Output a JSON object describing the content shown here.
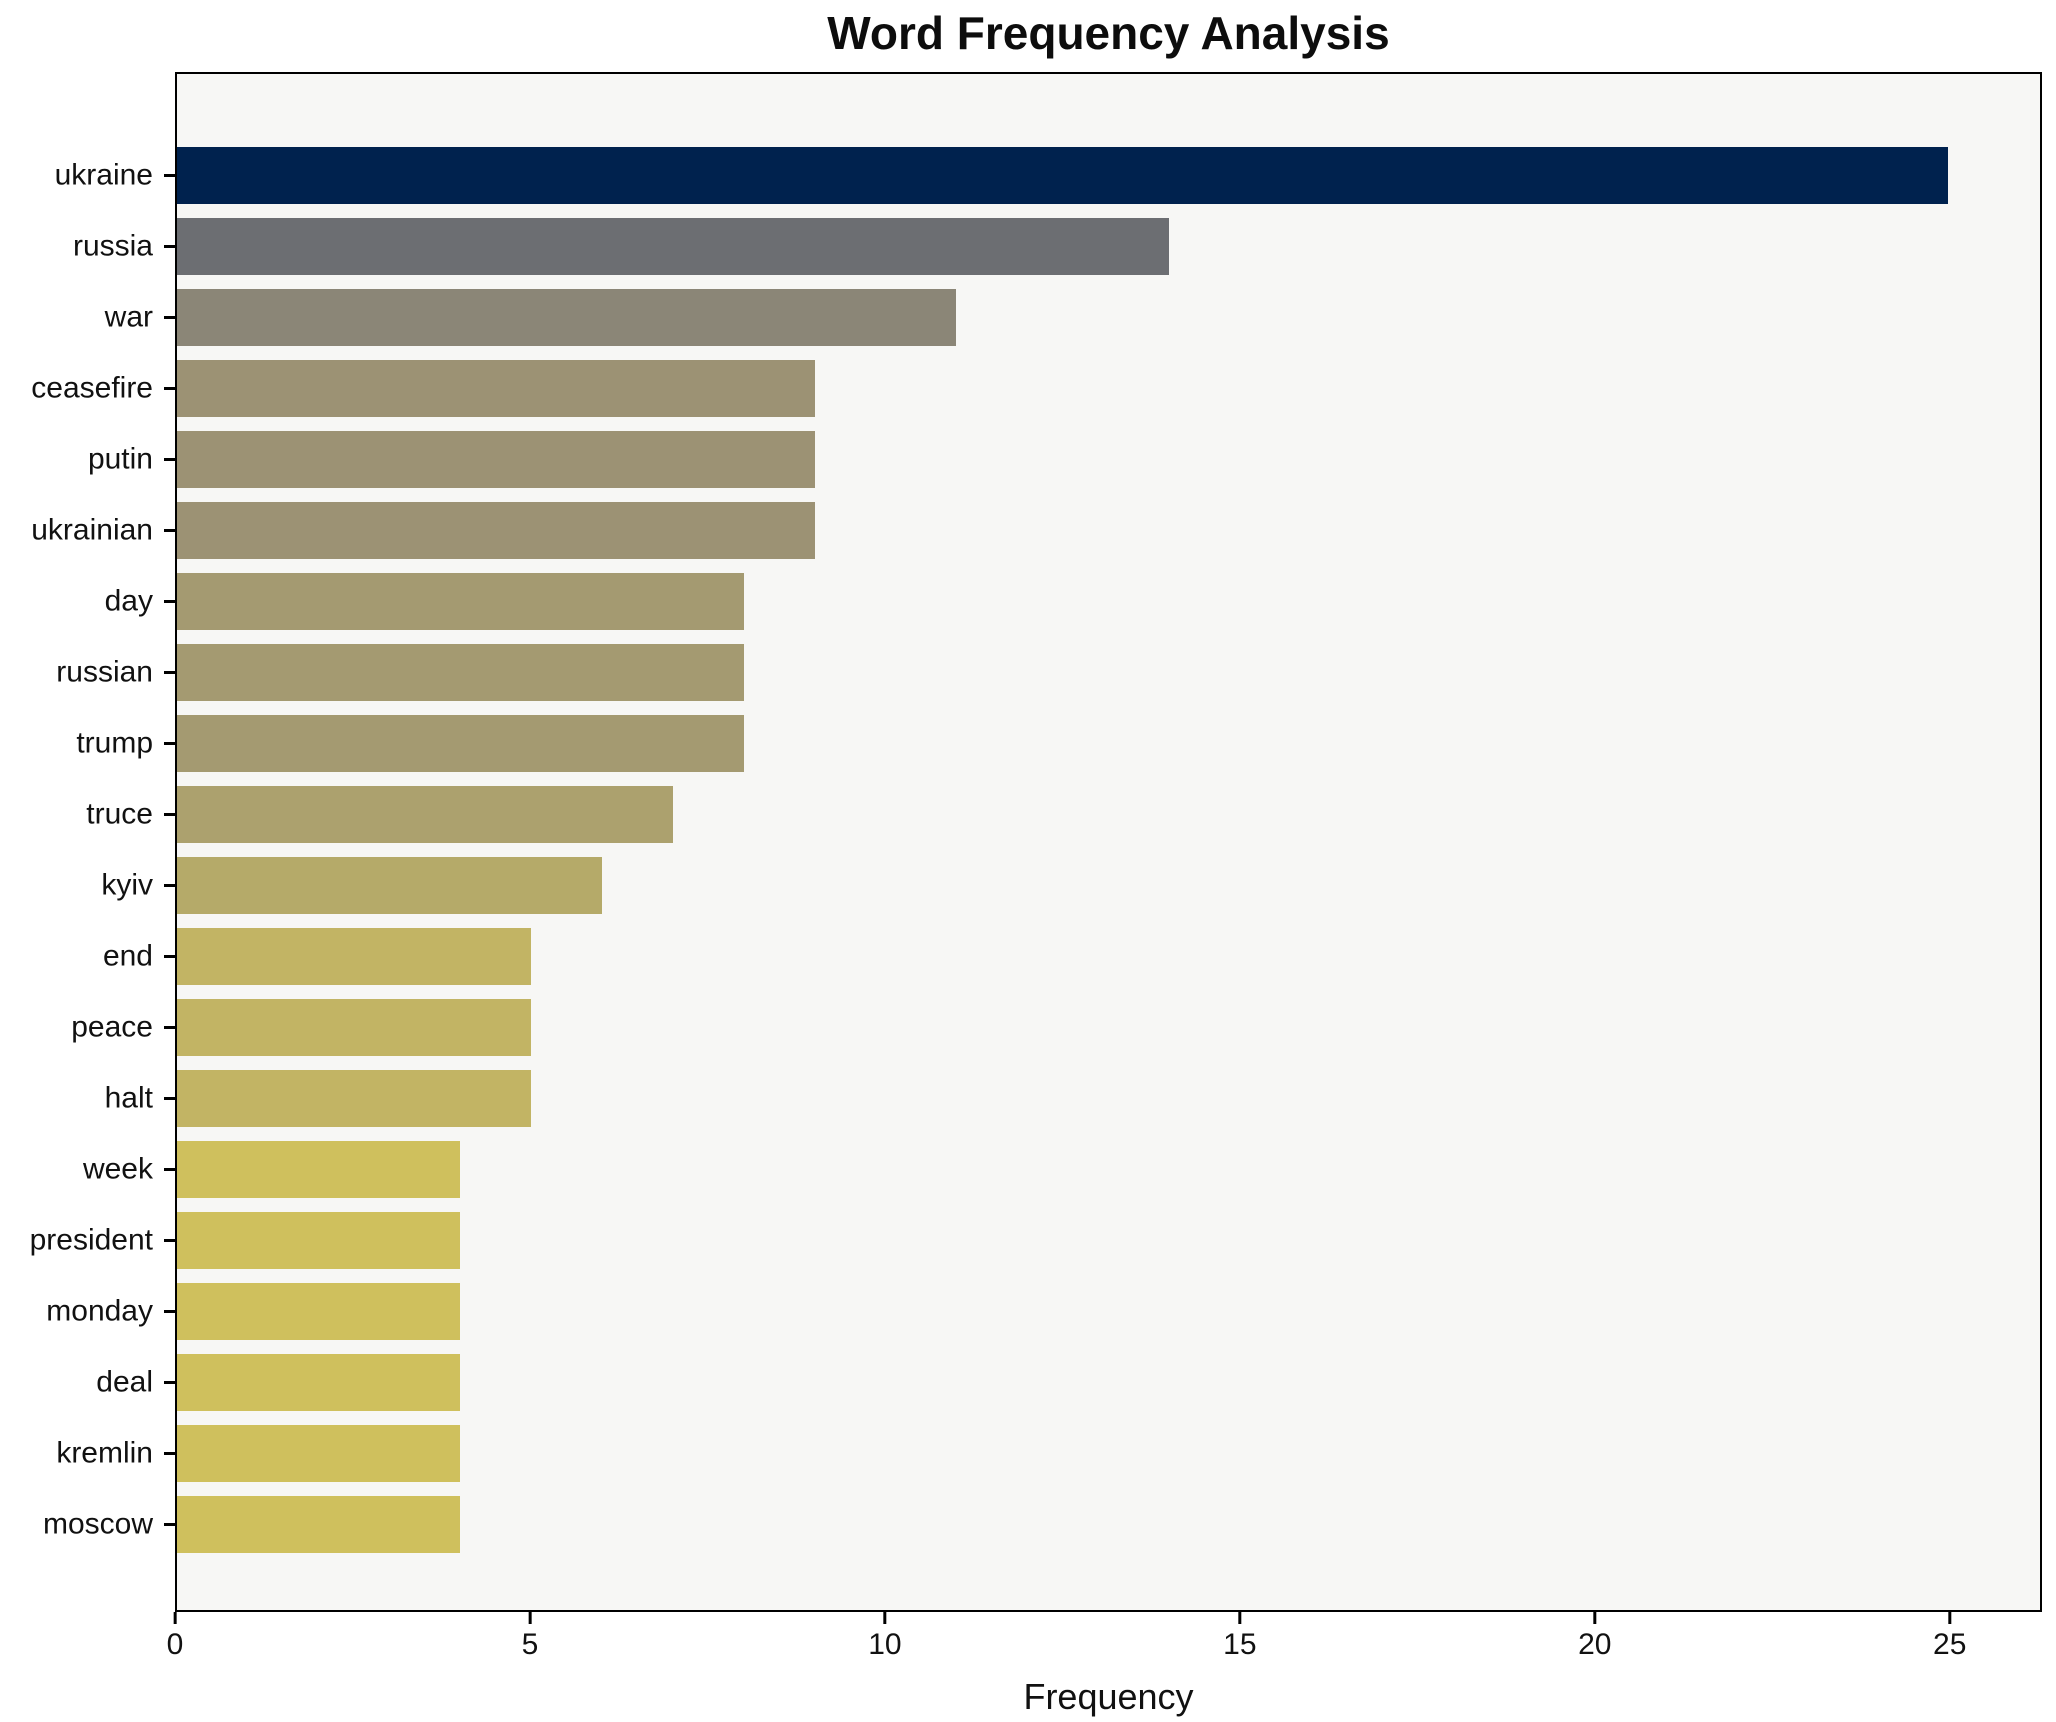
{
  "chart_data": {
    "type": "bar",
    "orientation": "horizontal",
    "title": "Word Frequency Analysis",
    "xlabel": "Frequency",
    "ylabel": "",
    "categories": [
      "ukraine",
      "russia",
      "war",
      "ceasefire",
      "putin",
      "ukrainian",
      "day",
      "russian",
      "trump",
      "truce",
      "kyiv",
      "end",
      "peace",
      "halt",
      "week",
      "president",
      "monday",
      "deal",
      "kremlin",
      "moscow"
    ],
    "values": [
      25,
      14,
      11,
      9,
      9,
      9,
      8,
      8,
      8,
      7,
      6,
      5,
      5,
      5,
      4,
      4,
      4,
      4,
      4,
      4
    ],
    "bar_colors": [
      "#00224e",
      "#6c6e72",
      "#8b8677",
      "#9c9274",
      "#9c9274",
      "#9c9274",
      "#a49a71",
      "#a49a71",
      "#a49a71",
      "#aca16e",
      "#b5aa69",
      "#c2b464",
      "#c2b464",
      "#c2b464",
      "#cfc05d",
      "#cfc05d",
      "#cfc05d",
      "#cfc05d",
      "#cfc05d",
      "#cfc05d"
    ],
    "xticks": [
      0,
      5,
      10,
      15,
      20,
      25
    ],
    "xlim": [
      0,
      26.3
    ],
    "grid": false,
    "legend_position": "none",
    "colormap_hint": "cividis shades darkest-to-lightest by descending frequency",
    "colors": {
      "figure_background": "#ffffff",
      "plot_background": "#f7f7f5",
      "spine": "#000000",
      "text": "#111111"
    }
  }
}
